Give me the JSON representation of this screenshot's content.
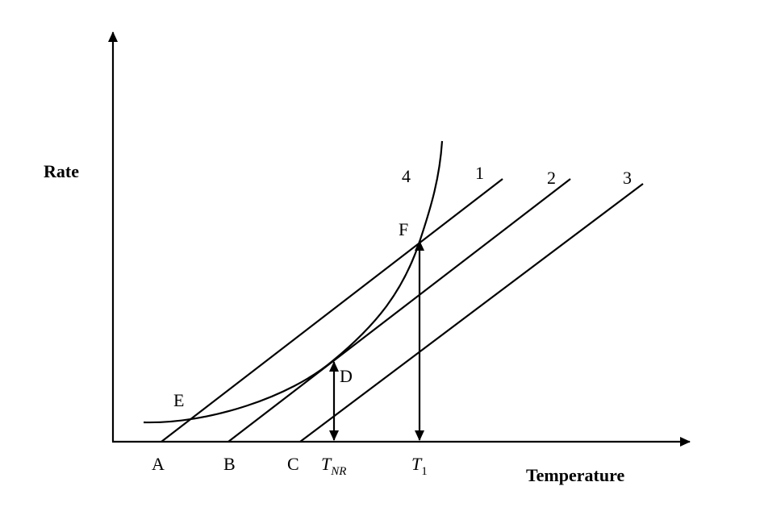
{
  "axes": {
    "y_label": "Rate",
    "x_label": "Temperature"
  },
  "lines": [
    {
      "label": "1"
    },
    {
      "label": "2"
    },
    {
      "label": "3"
    },
    {
      "label": "4"
    }
  ],
  "points": {
    "A": "A",
    "B": "B",
    "C": "C",
    "D": "D",
    "E": "E",
    "F": "F"
  },
  "temperatures": [
    {
      "main": "T",
      "sub": "NR"
    },
    {
      "main": "T",
      "sub": "1"
    }
  ]
}
